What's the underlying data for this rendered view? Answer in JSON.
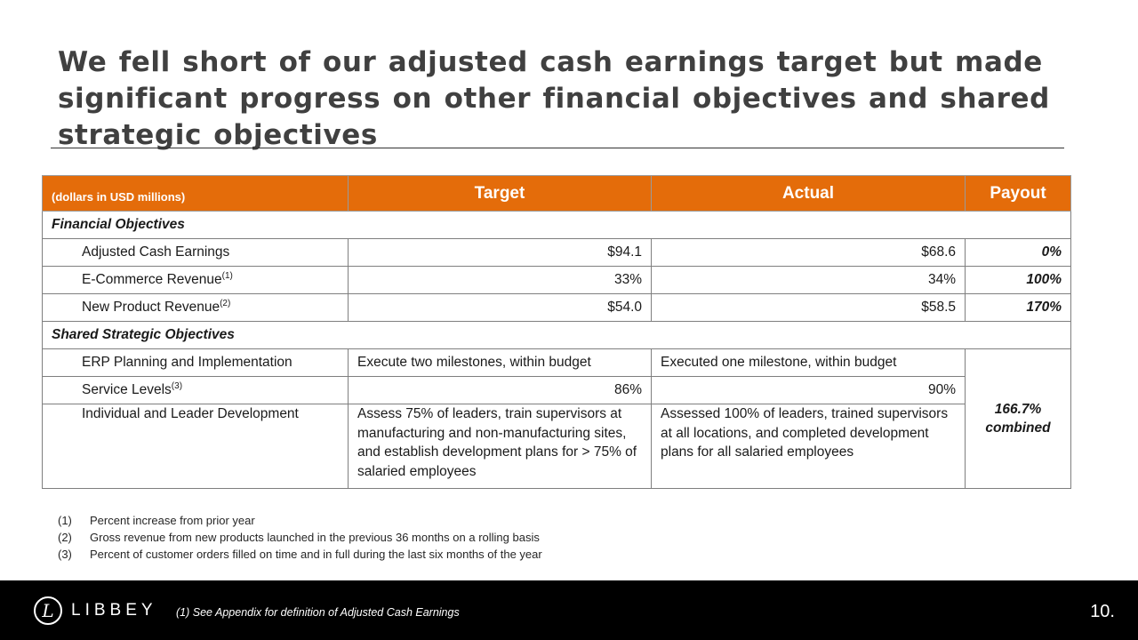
{
  "title": "We fell short of our adjusted cash earnings target but made significant progress on other financial objectives and shared strategic objectives",
  "table": {
    "headers": {
      "units": "(dollars in USD millions)",
      "target": "Target",
      "actual": "Actual",
      "payout": "Payout"
    },
    "sections": {
      "financial": "Financial Objectives",
      "strategic": "Shared Strategic Objectives"
    },
    "financial_rows": [
      {
        "label": "Adjusted Cash Earnings",
        "sup": "",
        "target": "$94.1",
        "actual": "$68.6",
        "payout": "0%"
      },
      {
        "label": "E-Commerce Revenue",
        "sup": "(1)",
        "target": "33%",
        "actual": "34%",
        "payout": "100%"
      },
      {
        "label": "New Product Revenue",
        "sup": "(2)",
        "target": "$54.0",
        "actual": "$58.5",
        "payout": "170%"
      }
    ],
    "strategic_rows": [
      {
        "label": "ERP Planning and Implementation",
        "sup": "",
        "target": "Execute two milestones, within budget",
        "actual": "Executed one milestone, within budget"
      },
      {
        "label": "Service Levels",
        "sup": "(3)",
        "target": "86%",
        "actual": "90%"
      },
      {
        "label": "Individual and Leader Development",
        "sup": "",
        "target": "Assess 75% of leaders, train supervisors at manufacturing and non-manufacturing sites, and establish development plans for > 75% of salaried employees",
        "actual": "Assessed 100% of leaders, trained supervisors at all locations, and completed development plans for all salaried employees"
      }
    ],
    "combined_payout": {
      "value": "166.7%",
      "label": "combined"
    }
  },
  "notes": [
    {
      "num": "(1)",
      "text": "Percent increase from prior year"
    },
    {
      "num": "(2)",
      "text": "Gross revenue from new products launched in the previous 36 months on a rolling basis"
    },
    {
      "num": "(3)",
      "text": "Percent of customer orders filled on time and in full during the last six months of the year"
    }
  ],
  "footer": {
    "logo_mark": "L",
    "logo_text": "LIBBEY",
    "footnote": "(1)  See Appendix for definition of Adjusted Cash Earnings",
    "page_number": "10."
  },
  "colors": {
    "header_bg": "#e46c0a",
    "footer_bg": "#000000",
    "title": "#404040"
  }
}
